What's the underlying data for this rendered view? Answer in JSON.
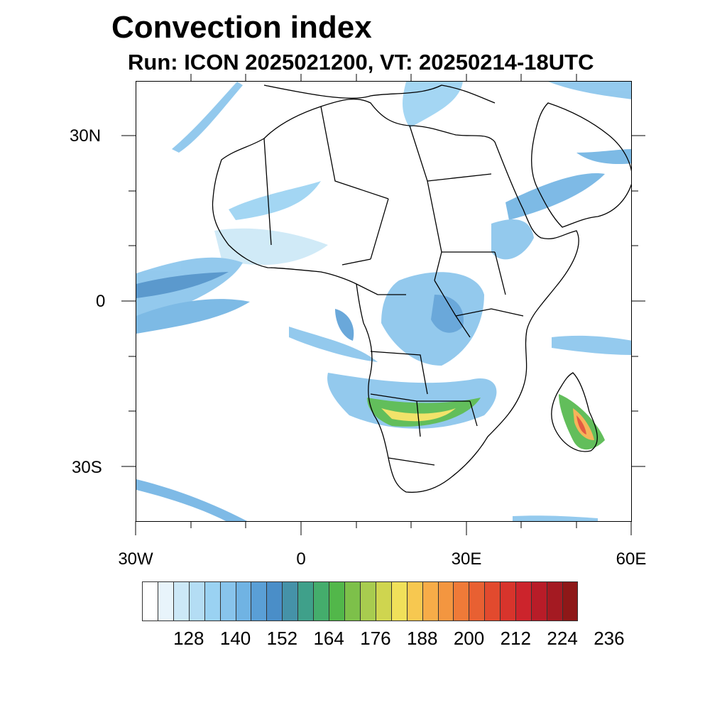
{
  "title": "Convection index",
  "subtitle": "Run: ICON 2025021200,  VT: 20250214-18UTC",
  "map": {
    "lon_range": [
      -30,
      60
    ],
    "lat_range": [
      -40,
      40
    ],
    "lat_labels": [
      "30N",
      "0",
      "30S"
    ],
    "lon_labels": [
      "30W",
      "0",
      "30E",
      "60E"
    ],
    "colors": {
      "coast": "#000000",
      "light_blue": "#c6e6f7",
      "mid_blue": "#7fbfe8",
      "blue": "#4a90cf",
      "teal": "#3f9f8f",
      "green": "#4cb050",
      "yellow_green": "#a8cf50",
      "yellow": "#f0e050",
      "orange": "#f5a040",
      "red": "#e04030"
    }
  },
  "colorbar": {
    "colors": [
      "#ffffff",
      "#e8f4fb",
      "#cce8f7",
      "#b4ddf4",
      "#9ad2f2",
      "#88c4ec",
      "#70b3e3",
      "#5a9fd6",
      "#4a8ec8",
      "#4592a8",
      "#3fa08a",
      "#44ad6c",
      "#52b74a",
      "#7dc04a",
      "#a8cc4f",
      "#cfd54f",
      "#f0e05a",
      "#f7c850",
      "#f7ac48",
      "#f39640",
      "#ef7a38",
      "#e86032",
      "#e24a2e",
      "#d8342c",
      "#cc242c",
      "#b81c28",
      "#a41a22",
      "#8e1818"
    ],
    "labels": [
      "128",
      "140",
      "152",
      "164",
      "176",
      "188",
      "200",
      "212",
      "224",
      "236"
    ]
  }
}
